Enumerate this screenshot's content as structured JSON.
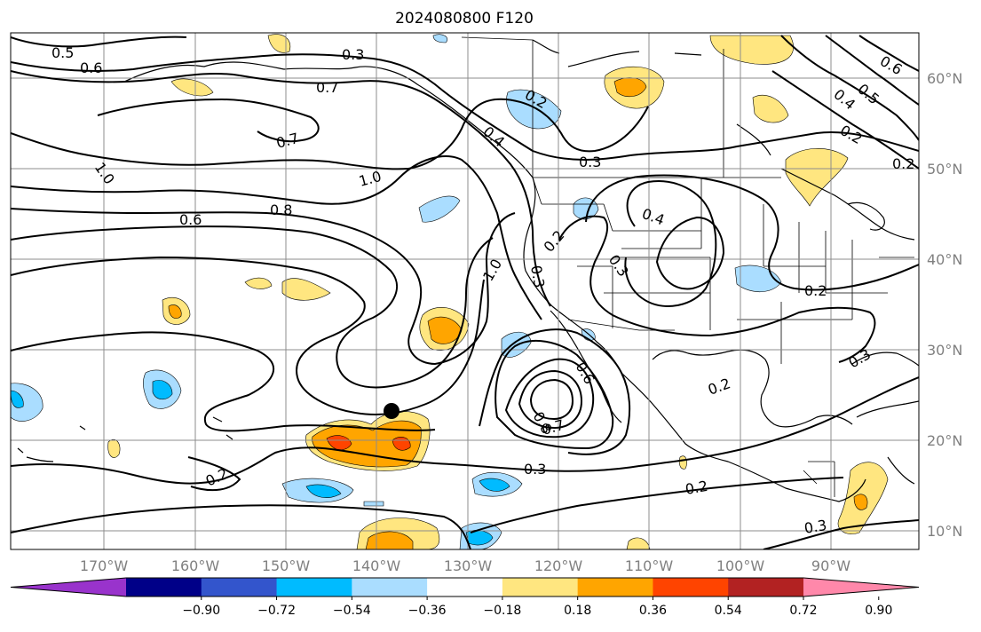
{
  "title": "2024080800 F120",
  "lon_labels": [
    "170°W",
    "160°W",
    "150°W",
    "140°W",
    "130°W",
    "120°W",
    "110°W",
    "100°W",
    "90°W"
  ],
  "lat_labels": [
    "60°N",
    "50°N",
    "40°N",
    "30°N",
    "20°N",
    "10°N"
  ],
  "colorbar": {
    "colors": [
      "#9933cc",
      "#000088",
      "#3355cc",
      "#00bbff",
      "#aaddff",
      "#ffffff",
      "#ffe680",
      "#ffa500",
      "#ff4400",
      "#b22222",
      "#ff88aa"
    ],
    "ticks": [
      "−0.90",
      "−0.72",
      "−0.54",
      "−0.36",
      "−0.18",
      "0.18",
      "0.36",
      "0.54",
      "0.72",
      "0.90"
    ]
  },
  "contour_labels": [
    "0.5",
    "0.6",
    "0.3",
    "0.7",
    "0.2",
    "0.7",
    "1.0",
    "1.0",
    "0.8",
    "0.6",
    "0.4",
    "0.3",
    "0.4",
    "0.2",
    "0.3",
    "1.0",
    "0.3",
    "0.2",
    "0.3",
    "0.6",
    "0.8",
    "0.7",
    "0.3",
    "0.2",
    "0.2",
    "0.2",
    "0.3",
    "0.2",
    "0.6",
    "0.4",
    "0.5",
    "0.2"
  ],
  "marker": "storm-position-dot"
}
